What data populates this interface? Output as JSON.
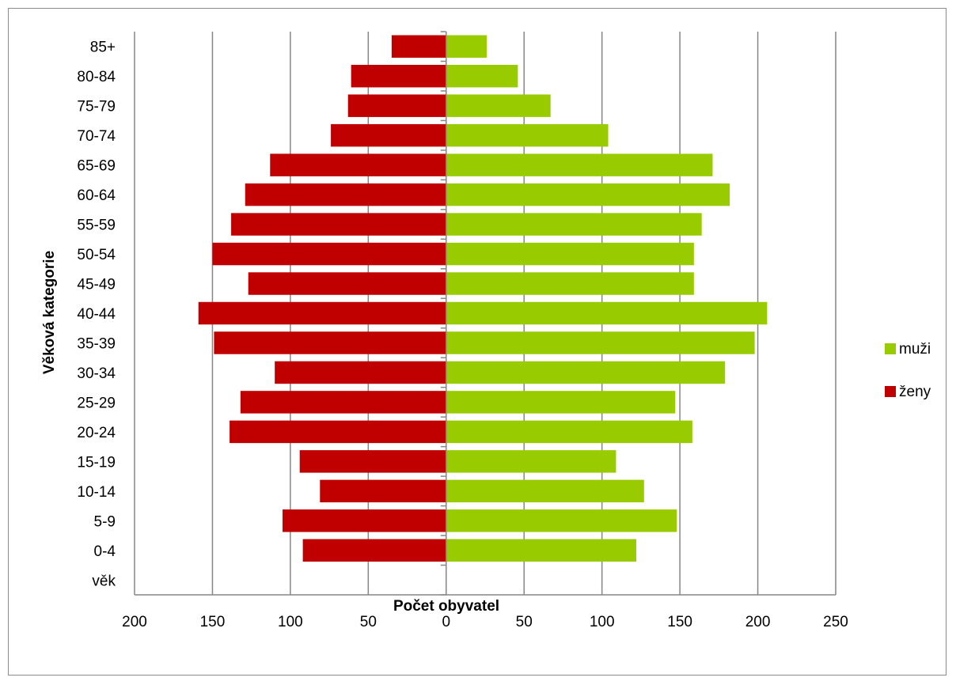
{
  "chart_data": {
    "type": "bar",
    "orientation": "horizontal",
    "title": "",
    "xlabel": "Počet obyvatel",
    "ylabel": "Věková kategorie",
    "categories": [
      "věk",
      "0-4",
      "5-9",
      "10-14",
      "15-19",
      "20-24",
      "25-29",
      "30-34",
      "35-39",
      "40-44",
      "45-49",
      "50-54",
      "55-59",
      "60-64",
      "65-69",
      "70-74",
      "75-79",
      "80-84",
      "85+"
    ],
    "series": [
      {
        "name": "muži",
        "color": "#99cc00",
        "values": [
          null,
          122,
          148,
          127,
          109,
          158,
          147,
          179,
          198,
          206,
          159,
          159,
          164,
          182,
          171,
          104,
          67,
          46,
          26
        ]
      },
      {
        "name": "ženy",
        "color": "#c00000",
        "values": [
          null,
          -92,
          -105,
          -81,
          -94,
          -139,
          -132,
          -110,
          -149,
          -159,
          -127,
          -150,
          -138,
          -129,
          -113,
          -74,
          -63,
          -61,
          -35
        ]
      }
    ],
    "xlim": [
      -200,
      250
    ],
    "xticks": [
      -200,
      -150,
      -100,
      -50,
      0,
      50,
      100,
      150,
      200,
      250
    ],
    "xtick_labels": [
      "200",
      "150",
      "100",
      "50",
      "0",
      "50",
      "100",
      "150",
      "200",
      "250"
    ],
    "grid": "vertical major gridlines",
    "legend_position": "right"
  }
}
